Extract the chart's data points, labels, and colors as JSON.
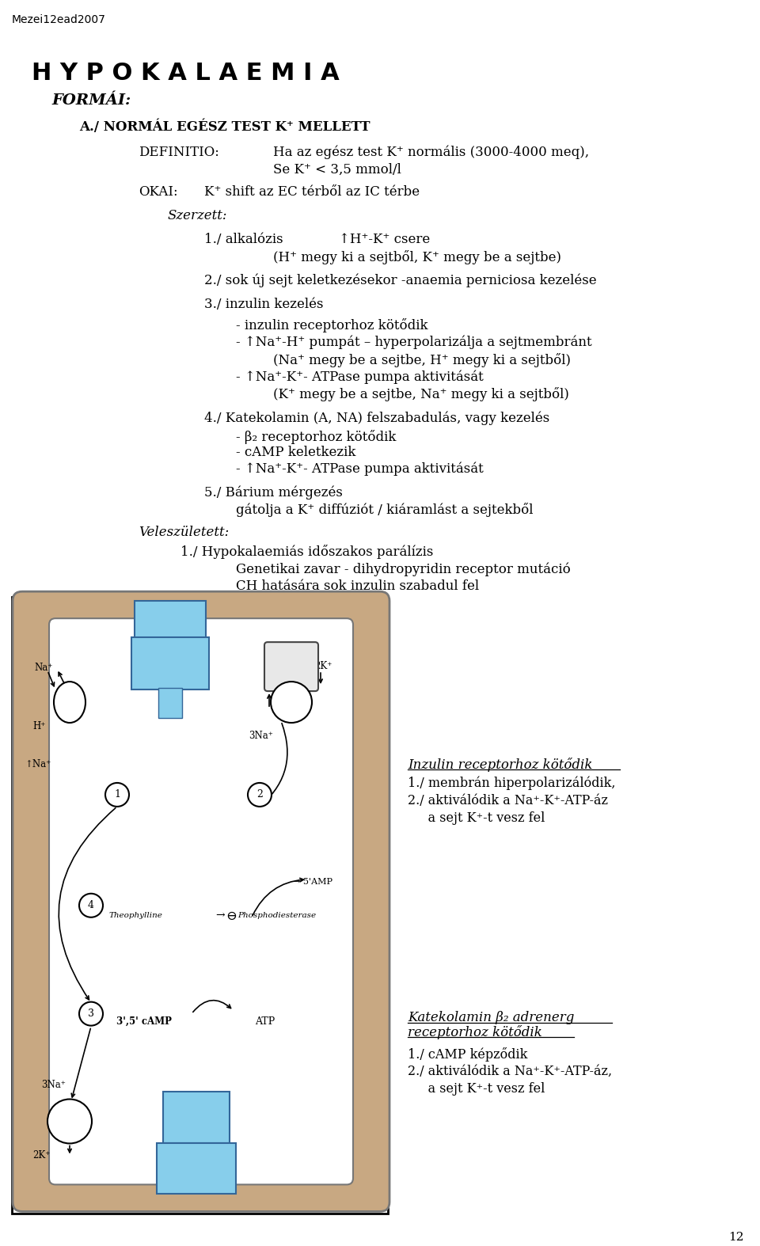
{
  "watermark": "Mezei12ead2007",
  "page_number": "12",
  "background_color": "#ffffff",
  "title": "H Y P O K A L A E M I A",
  "subtitle": "FORMÁI:",
  "section_a": "A./ NORMÁL EGÉSZ TEST K⁺ MELLETT",
  "definitio_label": "DEFINITIO:",
  "definitio_text1": "Ha az egész test K⁺ normális (3000-4000 meq),",
  "definitio_text2": "Se K⁺ < 3,5 mmol/l",
  "okai_label": "OKAI:",
  "okai_text": "K⁺ shift az EC térből az IC térbe",
  "szerzett_label": "Szerzett:",
  "item1_label": "1./ alkalózis",
  "item1_text": "↑H⁺-K⁺ csere",
  "item1_sub": "(H⁺ megy ki a sejtből, K⁺ megy be a sejtbe)",
  "item2": "2./ sok új sejt keletkezésekor -anaemia perniciosa kezelése",
  "item3_label": "3./ inzulin kezelés",
  "item3_sub1": "- inzulin receptorhoz kötődik",
  "item3_sub2": "- ↑Na⁺-H⁺ pumpát – hyperpolarizálja a sejtmembránt",
  "item3_sub2b": "(Na⁺ megy be a sejtbe, H⁺ megy ki a sejtből)",
  "item3_sub3": "- ↑Na⁺-K⁺- ATPase pumpa aktivitását",
  "item3_sub3b": "(K⁺ megy be a sejtbe, Na⁺ megy ki a sejtből)",
  "item4_label": "4./ Katekolamin (A, NA) felszabadulás, vagy kezelés",
  "item4_sub1": "- β₂ receptorhoz kötődik",
  "item4_sub2": "- cAMP keletkezik",
  "item4_sub3": "- ↑Na⁺-K⁺- ATPase pumpa aktivitását",
  "item5_label": "5./ Bárium mérgezés",
  "item5_sub": "gátolja a K⁺ diffúziót / kiáramlást a sejtekből",
  "veleszuletett_label": "Veleszületett:",
  "vitem1_label": "1./ Hypokalaemiás időszakos parálízis",
  "vitem1_sub1": "Genetikai zavar - dihydropyridin receptor mutáció",
  "vitem1_sub2": "CH hatására sok inzulin szabadul fel",
  "annot1_title": "Inzulin receptorhoz kötődik",
  "annot1_1": "1./ membrán hiperpolarizálódik,",
  "annot1_2": "2./ aktiválódik a Na⁺-K⁺-ATP-áz",
  "annot1_3": "     a sejt K⁺-t vesz fel",
  "annot2_title1": "Katekolamin β₂ adrenerg",
  "annot2_title2": "receptorhoz kötődik",
  "annot2_1": "1./ cAMP képződik",
  "annot2_2": "2./ aktiválódik a Na⁺-K⁺-ATP-áz,",
  "annot2_3": "     a sejt K⁺-t vesz fel"
}
